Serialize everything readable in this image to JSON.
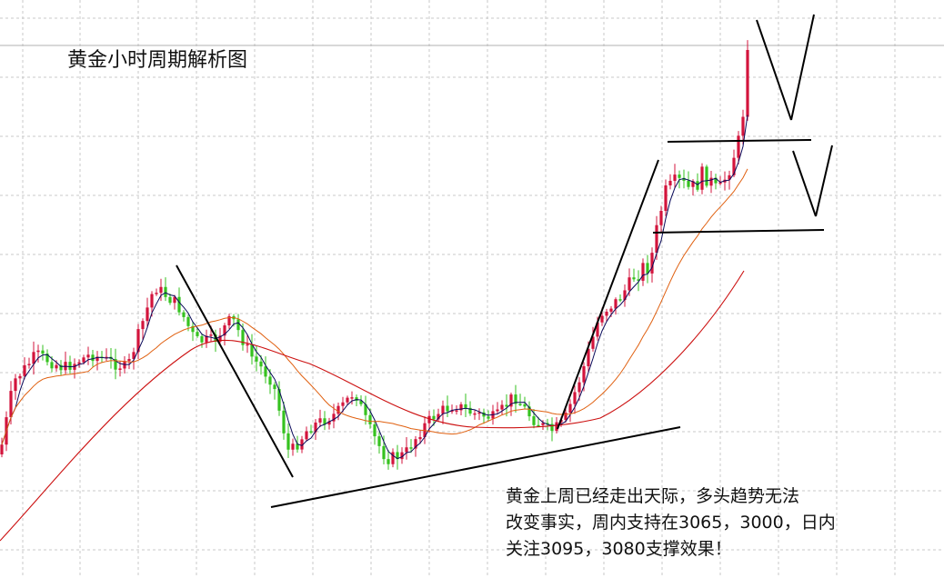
{
  "chart_data": {
    "type": "candlestick",
    "title": "黄金小时周期解析图",
    "annotation_lines": [
      "黄金上周已经走出天际，多头趋势无法",
      "改变事实，周内支持在3065，3000，日内",
      "关注3095，3080支撑效果！"
    ],
    "grid": true,
    "colors": {
      "up": "#d3143c",
      "down": "#35c21f",
      "ma_fast": "#0a0a5a",
      "ma_mid": "#e06010",
      "ma_slow": "#cc1010",
      "trendline": "#000000",
      "grid": "#c8c8c8"
    }
  }
}
